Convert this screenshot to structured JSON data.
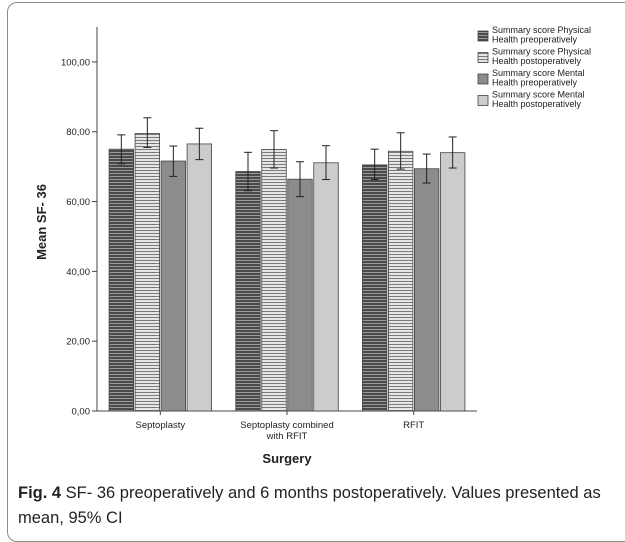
{
  "chart_data": {
    "type": "bar",
    "xlabel": "Surgery",
    "ylabel": "Mean SF- 36",
    "ylim": [
      0,
      110
    ],
    "yticks": [
      "0,00",
      "20,00",
      "40,00",
      "60,00",
      "80,00",
      "100,00"
    ],
    "yticks_values": [
      0,
      20,
      40,
      60,
      80,
      100
    ],
    "categories": [
      "Septoplasty",
      "Septoplasty combined\nwith RFIT",
      "RFIT"
    ],
    "series": [
      {
        "name": "Summary score Physical Health preoperatively",
        "values": [
          75.0,
          68.6,
          70.5
        ],
        "ci_low": [
          70.8,
          63.1,
          66.3
        ],
        "ci_high": [
          79.1,
          74.1,
          75.0
        ],
        "fill": "#5a5a5a",
        "pattern": "hstripe-dark"
      },
      {
        "name": "Summary score Physical Health postoperatively",
        "values": [
          79.5,
          74.9,
          74.4
        ],
        "ci_low": [
          75.5,
          69.6,
          69.3
        ],
        "ci_high": [
          84.0,
          80.3,
          79.7
        ],
        "fill": "#cfcfcf",
        "pattern": "hstripe-light"
      },
      {
        "name": "Summary score Mental Health preoperatively",
        "values": [
          71.6,
          66.4,
          69.4
        ],
        "ci_low": [
          67.2,
          61.4,
          65.3
        ],
        "ci_high": [
          75.9,
          71.4,
          73.6
        ],
        "fill": "#8c8c8c",
        "pattern": "solid"
      },
      {
        "name": "Summary score Mental Health postoperatively",
        "values": [
          76.5,
          71.1,
          74.0
        ],
        "ci_low": [
          72.0,
          66.3,
          69.6
        ],
        "ci_high": [
          81.0,
          76.0,
          78.5
        ],
        "fill": "#cccccc",
        "pattern": "solid"
      }
    ],
    "legend_position": "top-right",
    "grid": false
  },
  "caption": {
    "label": "Fig. 4",
    "text": " SF- 36 preoperatively and 6 months postoperatively. Values presented as mean, 95% CI"
  }
}
